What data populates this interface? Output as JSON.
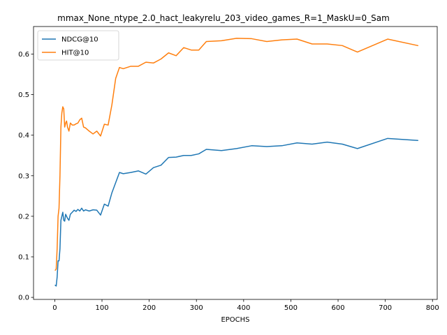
{
  "chart_data": {
    "type": "line",
    "title": "mmax_None_ntype_2.0_hact_leakyrelu_203_video_games_R=1_MaskU=0_Sam",
    "xlabel": "EPOCHS",
    "ylabel": "",
    "xlim": [
      -45,
      810
    ],
    "ylim": [
      -0.005,
      0.668
    ],
    "xticks": [
      0,
      100,
      200,
      300,
      400,
      500,
      600,
      700,
      800
    ],
    "yticks": [
      0.0,
      0.1,
      0.2,
      0.3,
      0.4,
      0.5,
      0.6
    ],
    "ytick_labels": [
      "0.0",
      "0.1",
      "0.2",
      "0.3",
      "0.4",
      "0.5",
      "0.6"
    ],
    "grid": false,
    "legend_position": "upper-left",
    "series": [
      {
        "name": "NDCG@10",
        "color": "#1f77b4",
        "points": [
          [
            1,
            0.03
          ],
          [
            3,
            0.028
          ],
          [
            5,
            0.05
          ],
          [
            7,
            0.09
          ],
          [
            9,
            0.09
          ],
          [
            11,
            0.12
          ],
          [
            13,
            0.19
          ],
          [
            15,
            0.2
          ],
          [
            17,
            0.21
          ],
          [
            19,
            0.19
          ],
          [
            21,
            0.188
          ],
          [
            23,
            0.205
          ],
          [
            25,
            0.2
          ],
          [
            27,
            0.195
          ],
          [
            30,
            0.19
          ],
          [
            33,
            0.205
          ],
          [
            37,
            0.21
          ],
          [
            41,
            0.215
          ],
          [
            45,
            0.212
          ],
          [
            49,
            0.217
          ],
          [
            53,
            0.213
          ],
          [
            57,
            0.22
          ],
          [
            61,
            0.213
          ],
          [
            65,
            0.216
          ],
          [
            73,
            0.213
          ],
          [
            81,
            0.216
          ],
          [
            89,
            0.215
          ],
          [
            97,
            0.203
          ],
          [
            105,
            0.23
          ],
          [
            113,
            0.225
          ],
          [
            121,
            0.258
          ],
          [
            137,
            0.308
          ],
          [
            145,
            0.305
          ],
          [
            161,
            0.308
          ],
          [
            177,
            0.312
          ],
          [
            193,
            0.304
          ],
          [
            209,
            0.32
          ],
          [
            225,
            0.326
          ],
          [
            241,
            0.345
          ],
          [
            257,
            0.346
          ],
          [
            273,
            0.35
          ],
          [
            289,
            0.35
          ],
          [
            305,
            0.354
          ],
          [
            321,
            0.365
          ],
          [
            353,
            0.362
          ],
          [
            385,
            0.367
          ],
          [
            417,
            0.374
          ],
          [
            449,
            0.372
          ],
          [
            481,
            0.374
          ],
          [
            513,
            0.381
          ],
          [
            545,
            0.378
          ],
          [
            577,
            0.383
          ],
          [
            609,
            0.378
          ],
          [
            641,
            0.367
          ],
          [
            705,
            0.392
          ],
          [
            769,
            0.387
          ]
        ]
      },
      {
        "name": "HIT@10",
        "color": "#ff7f0e",
        "points": [
          [
            1,
            0.067
          ],
          [
            3,
            0.07
          ],
          [
            5,
            0.12
          ],
          [
            7,
            0.2
          ],
          [
            9,
            0.22
          ],
          [
            11,
            0.3
          ],
          [
            13,
            0.42
          ],
          [
            15,
            0.455
          ],
          [
            17,
            0.47
          ],
          [
            19,
            0.465
          ],
          [
            21,
            0.42
          ],
          [
            23,
            0.43
          ],
          [
            25,
            0.435
          ],
          [
            27,
            0.42
          ],
          [
            30,
            0.41
          ],
          [
            33,
            0.43
          ],
          [
            37,
            0.425
          ],
          [
            41,
            0.425
          ],
          [
            45,
            0.428
          ],
          [
            49,
            0.43
          ],
          [
            53,
            0.438
          ],
          [
            57,
            0.442
          ],
          [
            61,
            0.42
          ],
          [
            65,
            0.418
          ],
          [
            73,
            0.41
          ],
          [
            81,
            0.403
          ],
          [
            89,
            0.41
          ],
          [
            97,
            0.398
          ],
          [
            105,
            0.427
          ],
          [
            113,
            0.425
          ],
          [
            121,
            0.475
          ],
          [
            129,
            0.54
          ],
          [
            137,
            0.567
          ],
          [
            145,
            0.564
          ],
          [
            161,
            0.57
          ],
          [
            177,
            0.57
          ],
          [
            193,
            0.58
          ],
          [
            209,
            0.578
          ],
          [
            225,
            0.588
          ],
          [
            241,
            0.603
          ],
          [
            257,
            0.596
          ],
          [
            273,
            0.616
          ],
          [
            289,
            0.61
          ],
          [
            305,
            0.61
          ],
          [
            321,
            0.631
          ],
          [
            353,
            0.633
          ],
          [
            385,
            0.639
          ],
          [
            417,
            0.638
          ],
          [
            449,
            0.631
          ],
          [
            481,
            0.635
          ],
          [
            513,
            0.637
          ],
          [
            545,
            0.625
          ],
          [
            577,
            0.625
          ],
          [
            609,
            0.621
          ],
          [
            641,
            0.605
          ],
          [
            705,
            0.637
          ],
          [
            769,
            0.621
          ]
        ]
      }
    ]
  }
}
